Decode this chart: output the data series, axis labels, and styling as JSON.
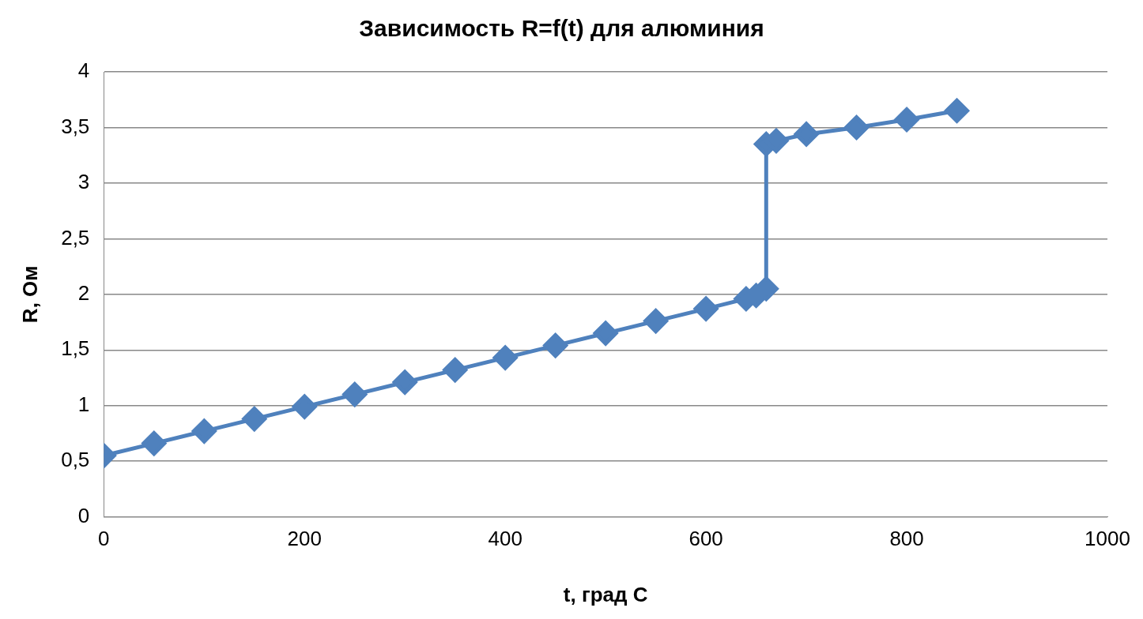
{
  "chart_data": {
    "type": "line",
    "title": "Зависимость R=f(t) для алюминия",
    "xlabel": "t, град С",
    "ylabel": "R, Ом",
    "x": [
      0,
      50,
      100,
      150,
      200,
      250,
      300,
      350,
      400,
      450,
      500,
      550,
      600,
      640,
      650,
      660,
      660,
      670,
      700,
      750,
      800,
      850
    ],
    "series": [
      {
        "color": "#4f81bd",
        "values": [
          0.55,
          0.66,
          0.77,
          0.88,
          0.99,
          1.1,
          1.21,
          1.32,
          1.43,
          1.54,
          1.65,
          1.76,
          1.87,
          1.96,
          1.99,
          2.05,
          3.35,
          3.38,
          3.44,
          3.5,
          3.57,
          3.65
        ]
      }
    ],
    "xlim": [
      0,
      1000
    ],
    "xticks": [
      0,
      200,
      400,
      600,
      800,
      1000
    ],
    "ylim": [
      0,
      4
    ],
    "yticks": [
      0,
      {
        "value": 0.5,
        "label": "0,5"
      },
      1,
      {
        "value": 1.5,
        "label": "1,5"
      },
      2,
      {
        "value": 2.5,
        "label": "2,5"
      },
      3,
      {
        "value": 3.5,
        "label": "3,5"
      },
      4
    ],
    "grid": "y",
    "legend": false,
    "marker": "diamond",
    "line_style": "solid"
  }
}
